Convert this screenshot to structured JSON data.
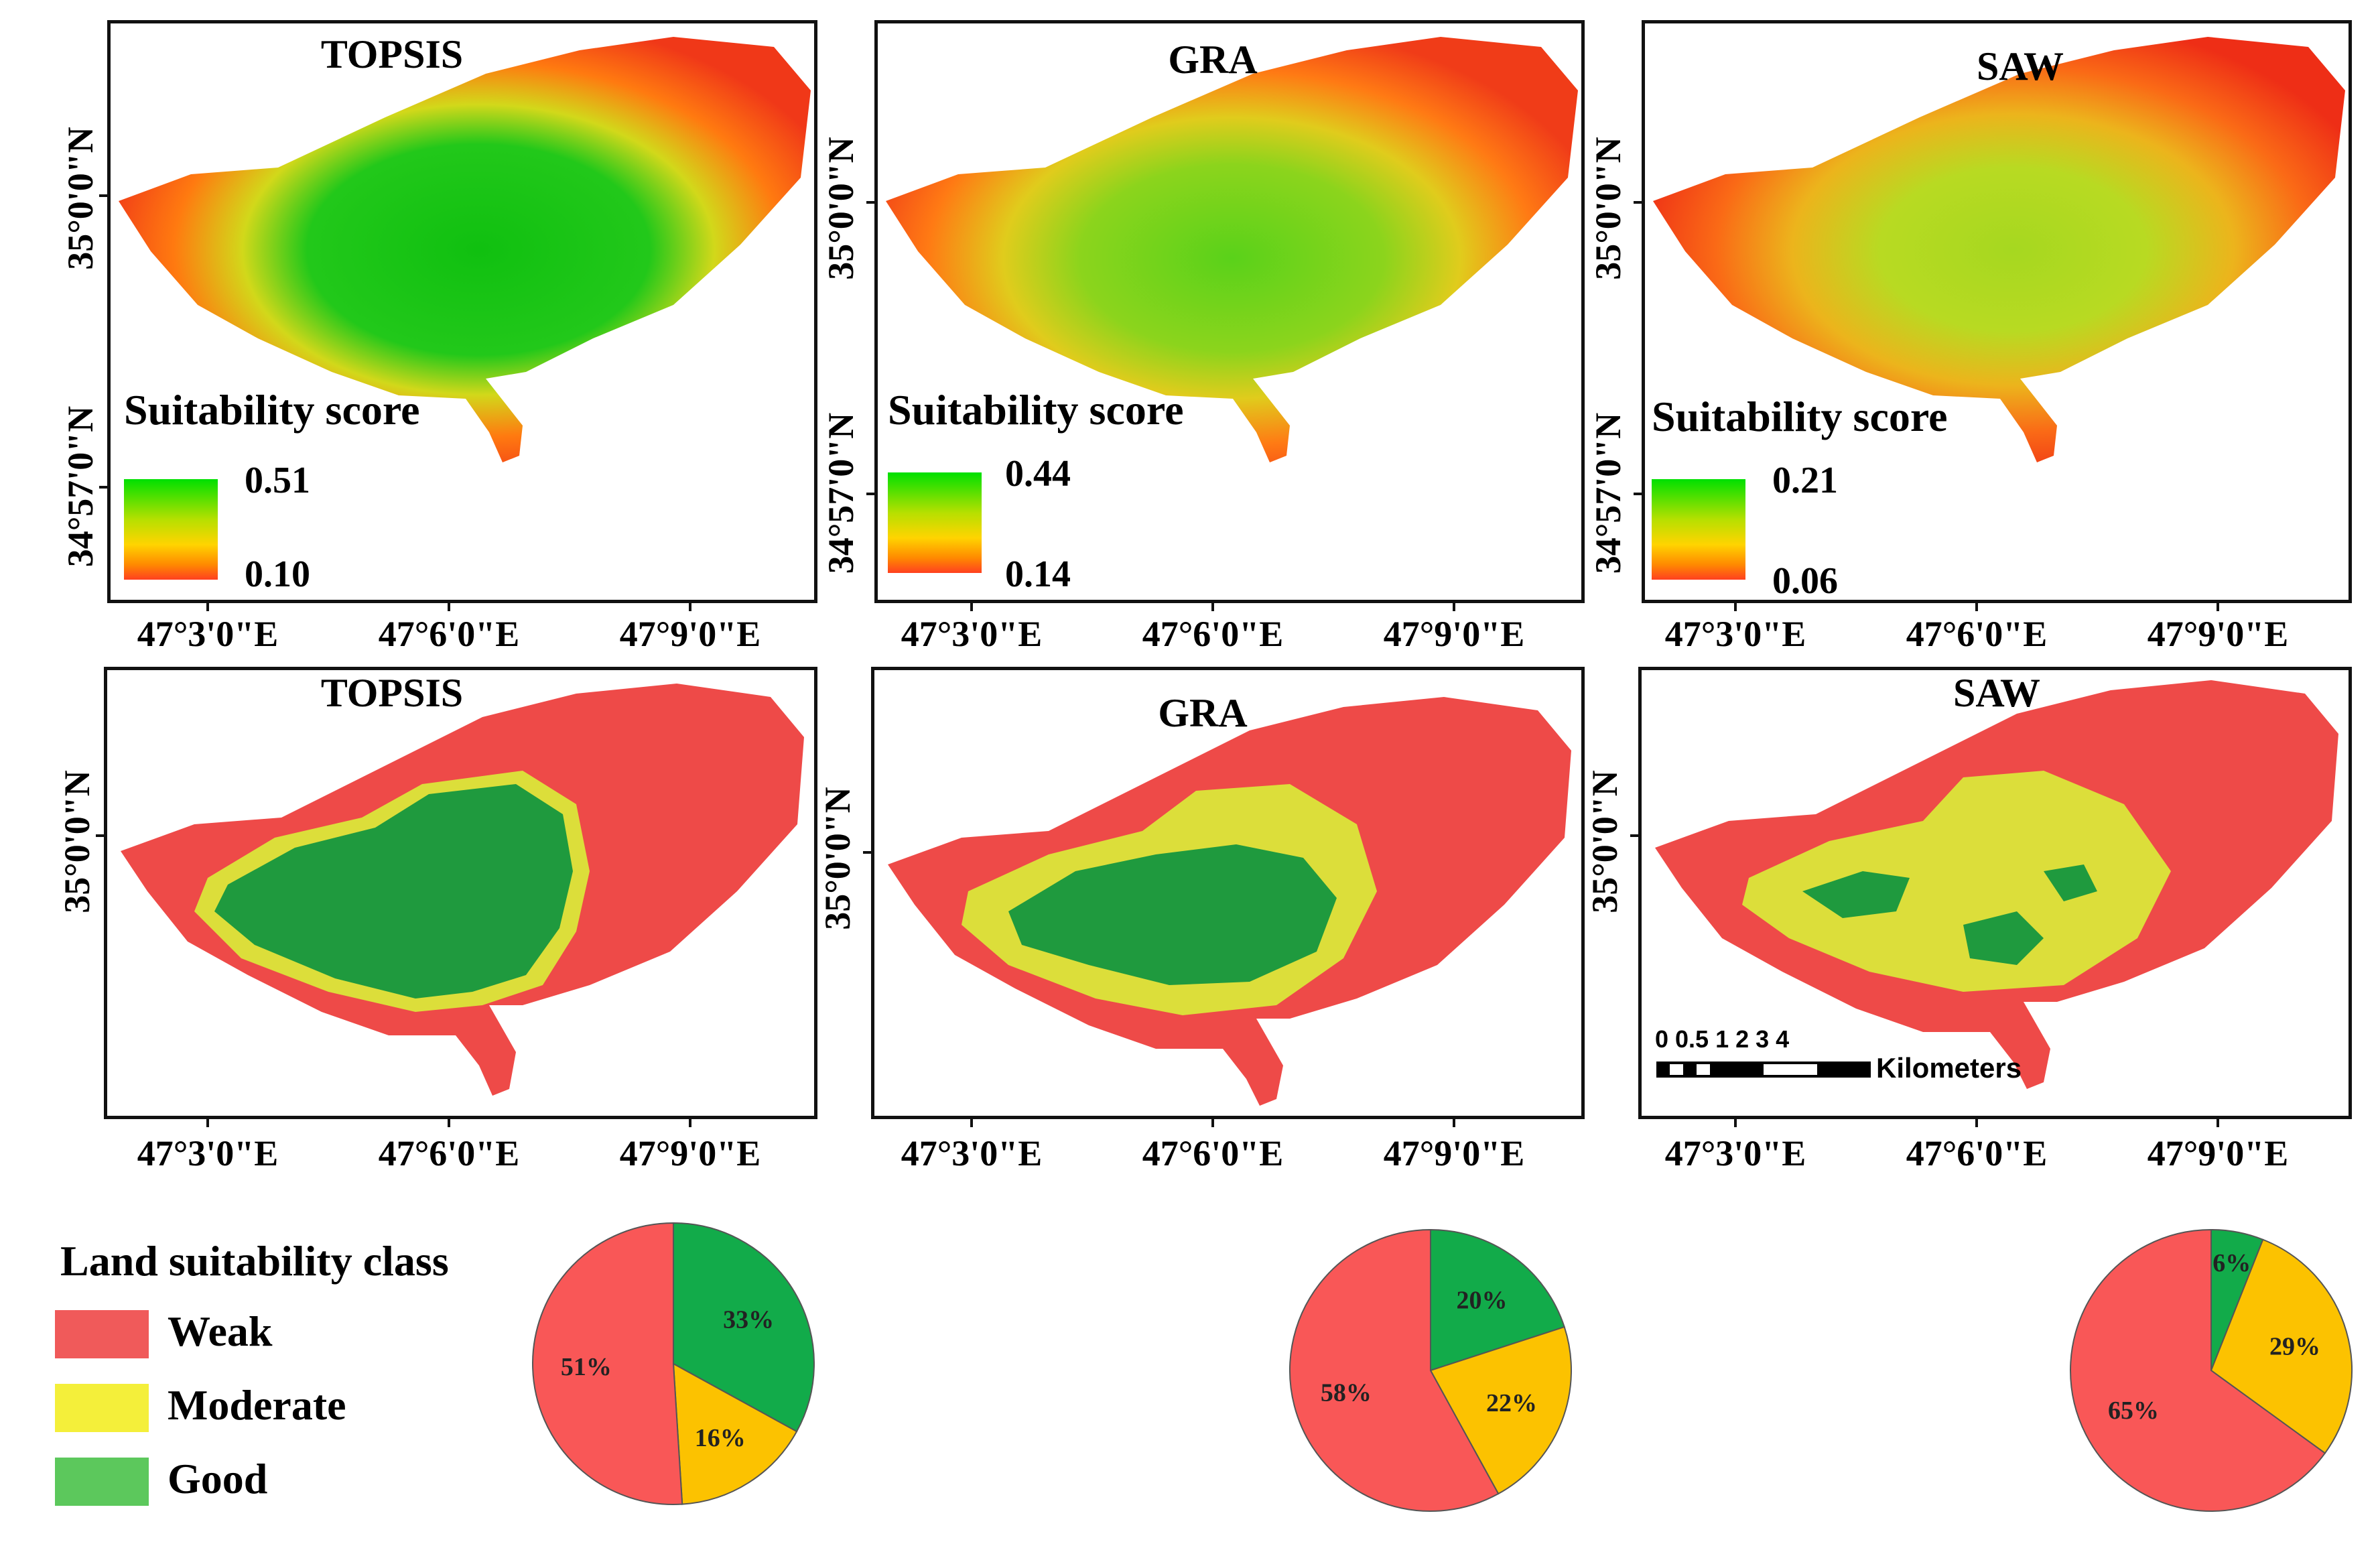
{
  "colors": {
    "weak": "#f05a5a",
    "moderate": "#f4ef3a",
    "good": "#2aa845",
    "pie_weak": "#f95757",
    "pie_moderate": "#fcc200",
    "pie_good": "#12ab4a",
    "score_high": "#00e000",
    "score_low": "#ff4020"
  },
  "axes": {
    "lat_top": "35°0'0\"N",
    "lat_bottom": "34°57'0\"N",
    "lon": [
      "47°3'0\"E",
      "47°6'0\"E",
      "47°9'0\"E"
    ]
  },
  "score_maps": [
    {
      "title": "TOPSIS",
      "legend_title": "Suitability score",
      "max": "0.51",
      "min": "0.10"
    },
    {
      "title": "GRA",
      "legend_title": "Suitability score",
      "max": "0.44",
      "min": "0.14"
    },
    {
      "title": "SAW",
      "legend_title": "Suitability score",
      "max": "0.21",
      "min": "0.06"
    }
  ],
  "class_maps": [
    {
      "title": "TOPSIS"
    },
    {
      "title": "GRA"
    },
    {
      "title": "SAW"
    }
  ],
  "scalebar": {
    "ticks": [
      "0",
      "0.5",
      "1",
      "2",
      "3",
      "4"
    ],
    "label": "0 0.5 1 2 3 4",
    "unit": "Kilometers"
  },
  "legend": {
    "title": "Land suitability class",
    "items": [
      {
        "label": "Weak",
        "color": "#f05a5a"
      },
      {
        "label": "Moderate",
        "color": "#f4ef3a"
      },
      {
        "label": "Good",
        "color": "#5cc85c"
      }
    ]
  },
  "chart_data": [
    {
      "type": "pie",
      "title": "TOPSIS",
      "labels": [
        "Good",
        "Moderate",
        "Weak"
      ],
      "values": [
        33,
        16,
        51
      ],
      "value_labels": [
        "33%",
        "16%",
        "51%"
      ]
    },
    {
      "type": "pie",
      "title": "GRA",
      "labels": [
        "Good",
        "Moderate",
        "Weak"
      ],
      "values": [
        20,
        22,
        58
      ],
      "value_labels": [
        "20%",
        "22%",
        "58%"
      ]
    },
    {
      "type": "pie",
      "title": "SAW",
      "labels": [
        "Good",
        "Moderate",
        "Weak"
      ],
      "values": [
        6,
        29,
        65
      ],
      "value_labels": [
        "6%",
        "29%",
        "65%"
      ]
    }
  ]
}
